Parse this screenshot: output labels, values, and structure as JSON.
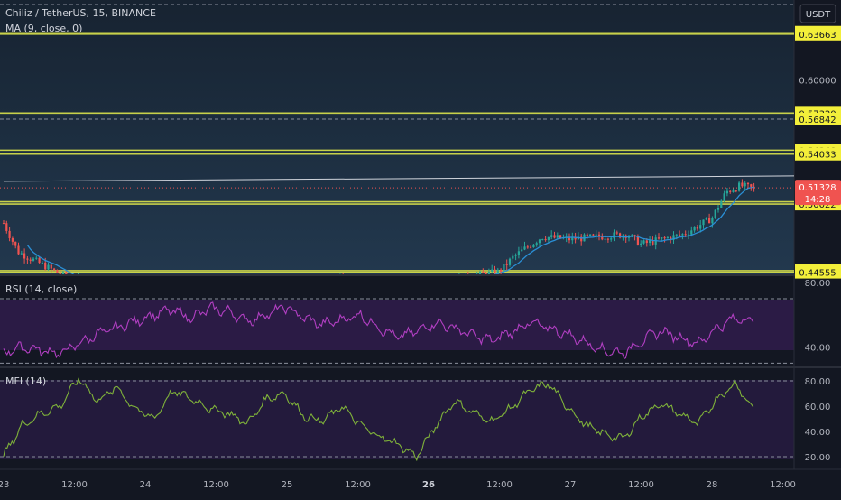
{
  "header": {
    "symbol": "Chiliz / TetherUS, 15, BINANCE",
    "ma_label": "MA (9, close, 0)",
    "currency_button": "USDT"
  },
  "colors": {
    "background": "#131722",
    "price_pane": "#1f3347",
    "rsi_pane": "#2b1b45",
    "mfi_pane": "#231a3c",
    "hline": "#c8d14a",
    "rsi_line": "#b13fc2",
    "mfi_line": "#7fb23a",
    "ma_line": "#2a8fd6",
    "trendline": "#d0d4dc",
    "up_candle": "#26a69a",
    "down_candle": "#ef5350",
    "yellow_label": "#f3ef3a",
    "current_label": "#f05350"
  },
  "chart_data": [
    {
      "type": "candlestick",
      "pane": "price",
      "ylim": [
        0.4438,
        0.664
      ],
      "y_ticks": [
        "0.60000"
      ],
      "horizontal_levels": [
        "0.63811",
        "0.63663",
        "0.57320",
        "0.56842",
        "0.54348",
        "0.54033",
        "0.50210",
        "0.50022",
        "0.44679",
        "0.44555"
      ],
      "current_price": "0.51328",
      "countdown": "14:28",
      "x_ticks": [
        "23",
        "12:00",
        "24",
        "12:00",
        "25",
        "12:00",
        "26",
        "12:00",
        "27",
        "12:00",
        "28",
        "12:00"
      ],
      "indicator": {
        "name": "MA (9, close, 0)"
      },
      "trendline": {
        "from": [
          0.0,
          0.5185
        ],
        "to": [
          9.4,
          0.5228
        ]
      }
    },
    {
      "type": "line",
      "pane": "rsi",
      "title": "RSI (14, close)",
      "ylim": [
        28,
        84
      ],
      "y_ticks": [
        "80.00",
        "40.00"
      ],
      "bands": [
        70,
        30
      ],
      "x": [
        0,
        0.2,
        0.4,
        0.6,
        0.8,
        1.0,
        1.2,
        1.4,
        1.6,
        1.8,
        2.0,
        2.2,
        2.4,
        2.6,
        2.8,
        3.0,
        3.2,
        3.4,
        3.6,
        3.8,
        4.0,
        4.2,
        4.4,
        4.6,
        4.8,
        5.0,
        5.2,
        5.4,
        5.6,
        5.8,
        6.0,
        6.2,
        6.4,
        6.6,
        6.8,
        7.0,
        7.2,
        7.4,
        7.6,
        7.8,
        8.0
      ],
      "values": [
        37,
        40,
        38,
        36,
        42,
        48,
        52,
        56,
        60,
        63,
        58,
        64,
        62,
        56,
        60,
        65,
        58,
        54,
        57,
        60,
        52,
        46,
        50,
        55,
        52,
        47,
        44,
        49,
        55,
        52,
        48,
        43,
        38,
        36,
        44,
        50,
        46,
        42,
        52,
        58,
        56
      ]
    },
    {
      "type": "line",
      "pane": "mfi",
      "title": "MFI (14)",
      "ylim": [
        10,
        90
      ],
      "y_ticks": [
        "80.00",
        "60.00",
        "40.00",
        "20.00"
      ],
      "bands": [
        80,
        20
      ],
      "x": [
        0,
        0.2,
        0.4,
        0.6,
        0.8,
        1.0,
        1.2,
        1.4,
        1.6,
        1.8,
        2.0,
        2.2,
        2.4,
        2.6,
        2.8,
        3.0,
        3.2,
        3.4,
        3.6,
        3.8,
        4.0,
        4.2,
        4.4,
        4.6,
        4.8,
        5.0,
        5.2,
        5.4,
        5.6,
        5.8,
        6.0,
        6.2,
        6.4,
        6.6,
        6.8,
        7.0,
        7.2,
        7.4,
        7.6,
        7.8,
        8.0
      ],
      "values": [
        21,
        45,
        54,
        60,
        82,
        64,
        75,
        58,
        50,
        72,
        66,
        58,
        54,
        46,
        66,
        70,
        52,
        48,
        60,
        45,
        36,
        30,
        20,
        44,
        64,
        55,
        48,
        58,
        72,
        78,
        60,
        45,
        38,
        34,
        52,
        62,
        54,
        46,
        66,
        78,
        56
      ]
    }
  ]
}
